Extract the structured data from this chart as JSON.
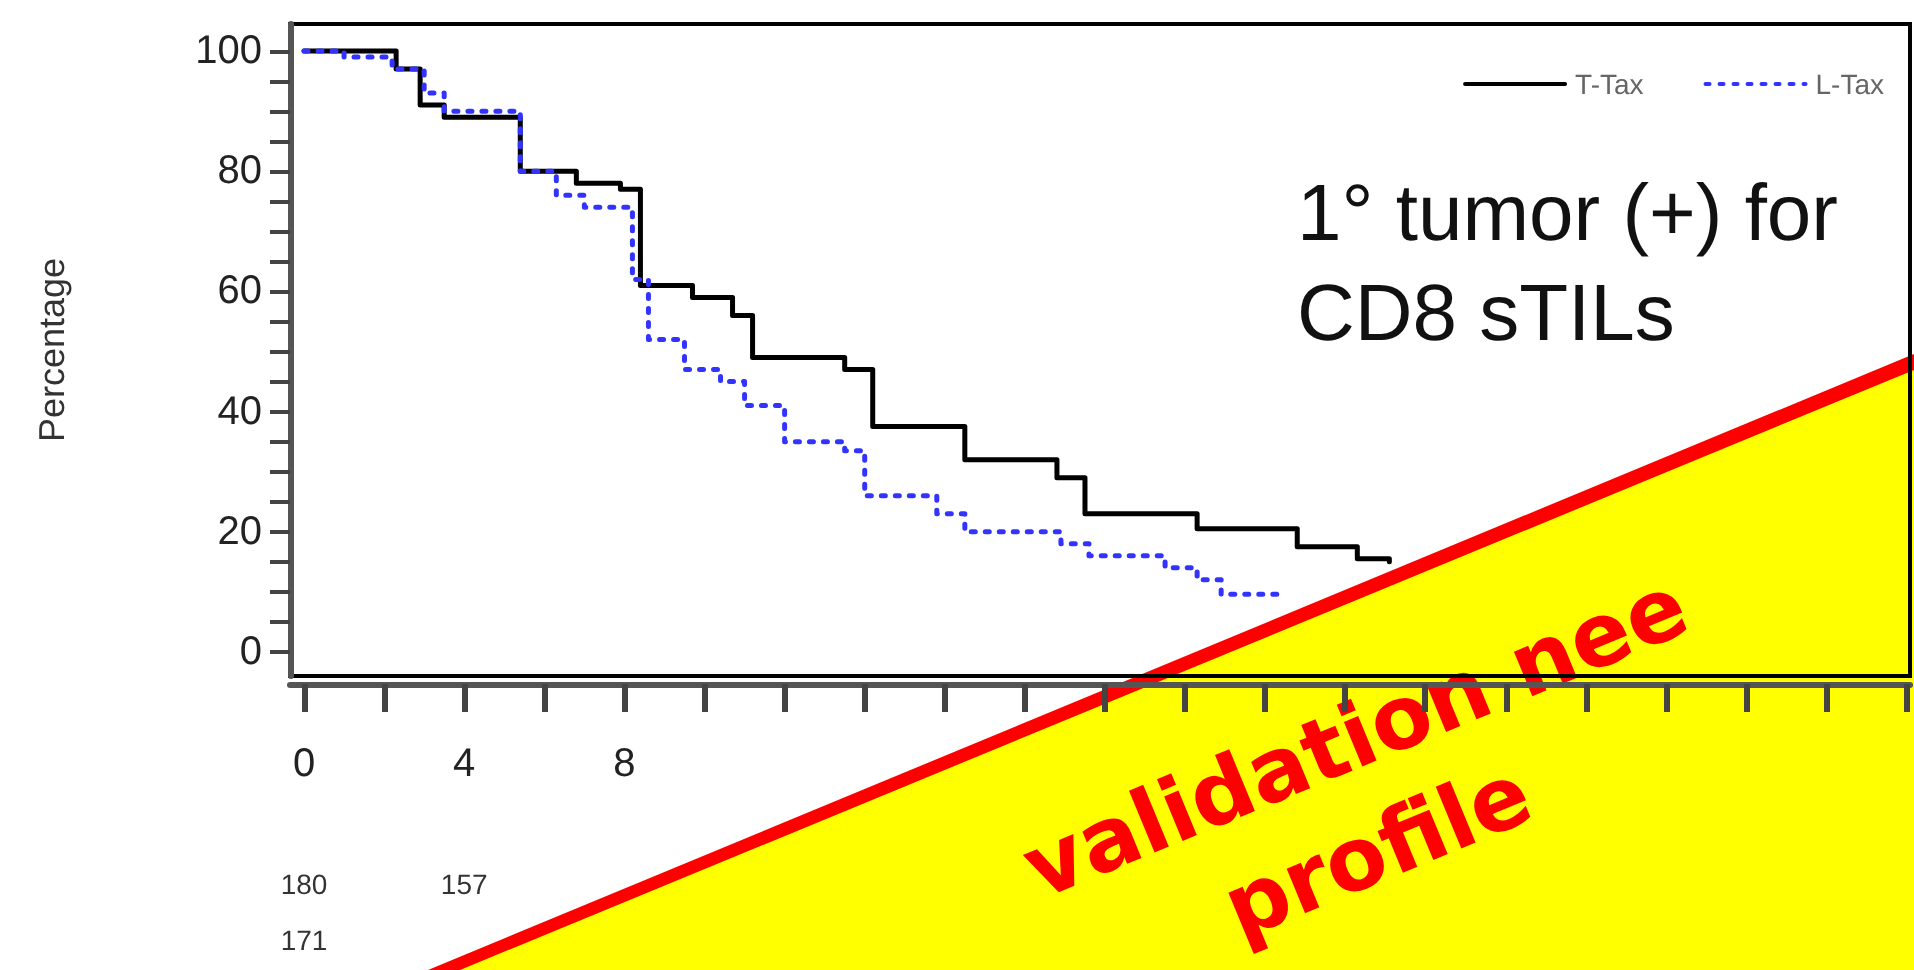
{
  "chart_data": {
    "type": "step",
    "ylabel": "Percentage",
    "xlim": [
      -0.35,
      40.1
    ],
    "ylim": [
      -4,
      104.5
    ],
    "xticks": [
      0,
      4,
      8
    ],
    "yticks": [
      0,
      20,
      40,
      60,
      80,
      100
    ],
    "legend": "top right",
    "grid": false,
    "series": [
      {
        "name": "T-Tax",
        "color": "#000000",
        "line_style": "solid",
        "x": [
          0,
          2.3,
          2.9,
          3.5,
          5.4,
          6.8,
          7.9,
          8.4,
          9.7,
          10.7,
          11.2,
          13.5,
          14.2,
          16.5,
          18.8,
          19.5,
          22.3,
          24.8,
          26.3,
          27.1
        ],
        "values": [
          100,
          97,
          91,
          89,
          80,
          78,
          77,
          61,
          59,
          56,
          49,
          47,
          37.5,
          32,
          29,
          23,
          20.5,
          17.5,
          15.5,
          15
        ]
      },
      {
        "name": "L-Tax",
        "color": "#3333ff",
        "line_style": "dotted",
        "x": [
          0,
          1,
          2.2,
          3,
          3.5,
          5.4,
          6.3,
          7,
          8.2,
          8.6,
          9.5,
          10.4,
          11,
          12,
          13.5,
          14,
          15.8,
          16.5,
          18.9,
          19.6,
          21.5,
          22.3,
          22.9,
          24.4
        ],
        "values": [
          100,
          99,
          97,
          93,
          90,
          80,
          76,
          74,
          62,
          52,
          47,
          45,
          41,
          35,
          33.5,
          26,
          23,
          20,
          18,
          16,
          14,
          12,
          9.6,
          9.6
        ]
      }
    ],
    "annotations": [
      "1° tumor (+) for\nCD8 sTILs",
      "180",
      "157",
      "171",
      "validation nee",
      "profile"
    ]
  }
}
